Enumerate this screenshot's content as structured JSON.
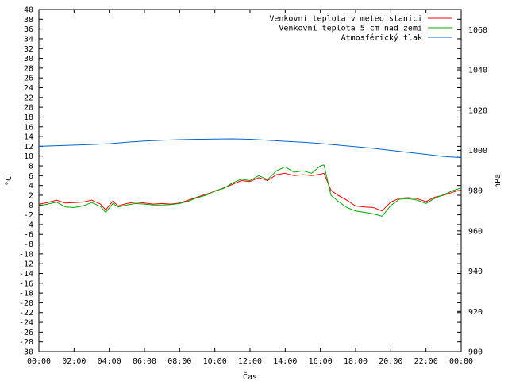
{
  "chart_data": {
    "type": "line",
    "xlabel": "Čas",
    "ylabel_left": "°C",
    "ylabel_right": "hPa",
    "x_ticks": [
      "00:00",
      "02:00",
      "04:00",
      "06:00",
      "08:00",
      "10:00",
      "12:00",
      "14:00",
      "16:00",
      "18:00",
      "20:00",
      "22:00",
      "00:00"
    ],
    "x_range_hours": [
      0,
      24
    ],
    "y_left_range": [
      -30,
      40
    ],
    "y_left_ticks": [
      -30,
      -28,
      -26,
      -24,
      -22,
      -20,
      -18,
      -16,
      -14,
      -12,
      -10,
      -8,
      -6,
      -4,
      -2,
      0,
      2,
      4,
      6,
      8,
      10,
      12,
      14,
      16,
      18,
      20,
      22,
      24,
      26,
      28,
      30,
      32,
      34,
      36,
      38,
      40
    ],
    "y_right_range": [
      900,
      1070
    ],
    "y_right_ticks": [
      900,
      920,
      940,
      960,
      980,
      1000,
      1020,
      1040,
      1060
    ],
    "grid": false,
    "legend_position": "top-right",
    "series": [
      {
        "name": "Venkovní teplota v meteo stanici",
        "axis": "left",
        "color": "#ff0000",
        "x": [
          0,
          0.5,
          1,
          1.5,
          2,
          2.5,
          3,
          3.5,
          3.8,
          4.2,
          4.5,
          5,
          5.5,
          6,
          6.5,
          7,
          7.5,
          8,
          8.5,
          9,
          9.5,
          10,
          10.5,
          11,
          11.5,
          12,
          12.5,
          13,
          13.5,
          14,
          14.5,
          15,
          15.5,
          16,
          16.2,
          16.6,
          17,
          17.5,
          18,
          18.5,
          19,
          19.5,
          20,
          20.5,
          21,
          21.5,
          22,
          22.5,
          23,
          23.5,
          24
        ],
        "y": [
          0.2,
          0.5,
          1.0,
          0.4,
          0.5,
          0.6,
          1.0,
          0.2,
          -1.0,
          0.8,
          -0.2,
          0.3,
          0.6,
          0.4,
          0.2,
          0.3,
          0.2,
          0.4,
          1.0,
          1.6,
          2.2,
          2.8,
          3.5,
          4.2,
          5.0,
          4.8,
          5.6,
          5.0,
          6.2,
          6.5,
          6.0,
          6.2,
          6.0,
          6.3,
          6.5,
          3.0,
          2.0,
          1.0,
          -0.2,
          -0.4,
          -0.5,
          -1.2,
          0.6,
          1.4,
          1.5,
          1.3,
          0.7,
          1.6,
          2.0,
          2.6,
          3.1
        ]
      },
      {
        "name": "Venkovní teplota 5 cm nad zemí",
        "axis": "left",
        "color": "#00aa00",
        "x": [
          0,
          0.5,
          1,
          1.5,
          2,
          2.5,
          3,
          3.5,
          3.8,
          4.2,
          4.5,
          5,
          5.5,
          6,
          6.5,
          7,
          7.5,
          8,
          8.5,
          9,
          9.5,
          10,
          10.5,
          11,
          11.5,
          12,
          12.5,
          13,
          13.5,
          14,
          14.5,
          15,
          15.5,
          16,
          16.2,
          16.6,
          17,
          17.5,
          18,
          18.5,
          19,
          19.5,
          20,
          20.5,
          21,
          21.5,
          22,
          22.5,
          23,
          23.5,
          24
        ],
        "y": [
          -0.2,
          0.2,
          0.6,
          -0.4,
          -0.5,
          -0.2,
          0.5,
          -0.3,
          -1.5,
          0.3,
          -0.4,
          0.0,
          0.3,
          0.2,
          0.0,
          0.0,
          0.1,
          0.3,
          0.8,
          1.5,
          2.0,
          2.9,
          3.4,
          4.5,
          5.3,
          5.0,
          6.0,
          5.2,
          7.0,
          7.8,
          6.7,
          7.0,
          6.5,
          8.0,
          8.2,
          2.0,
          0.8,
          -0.5,
          -1.2,
          -1.5,
          -1.8,
          -2.3,
          -0.1,
          1.2,
          1.3,
          1.0,
          0.3,
          1.4,
          2.1,
          2.9,
          3.5
        ]
      },
      {
        "name": "Atmosférický tlak",
        "axis": "right",
        "color": "#0066cc",
        "x": [
          0,
          1,
          2,
          3,
          4,
          5,
          6,
          7,
          8,
          9,
          10,
          11,
          12,
          13,
          14,
          15,
          16,
          17,
          18,
          19,
          20,
          21,
          22,
          23,
          24
        ],
        "y": [
          1002.0,
          1002.3,
          1002.6,
          1002.9,
          1003.3,
          1004.0,
          1004.6,
          1005.0,
          1005.3,
          1005.5,
          1005.6,
          1005.7,
          1005.5,
          1005.0,
          1004.5,
          1004.0,
          1003.4,
          1002.6,
          1001.8,
          1001.0,
          1000.0,
          999.0,
          998.0,
          997.0,
          996.4
        ]
      }
    ]
  }
}
